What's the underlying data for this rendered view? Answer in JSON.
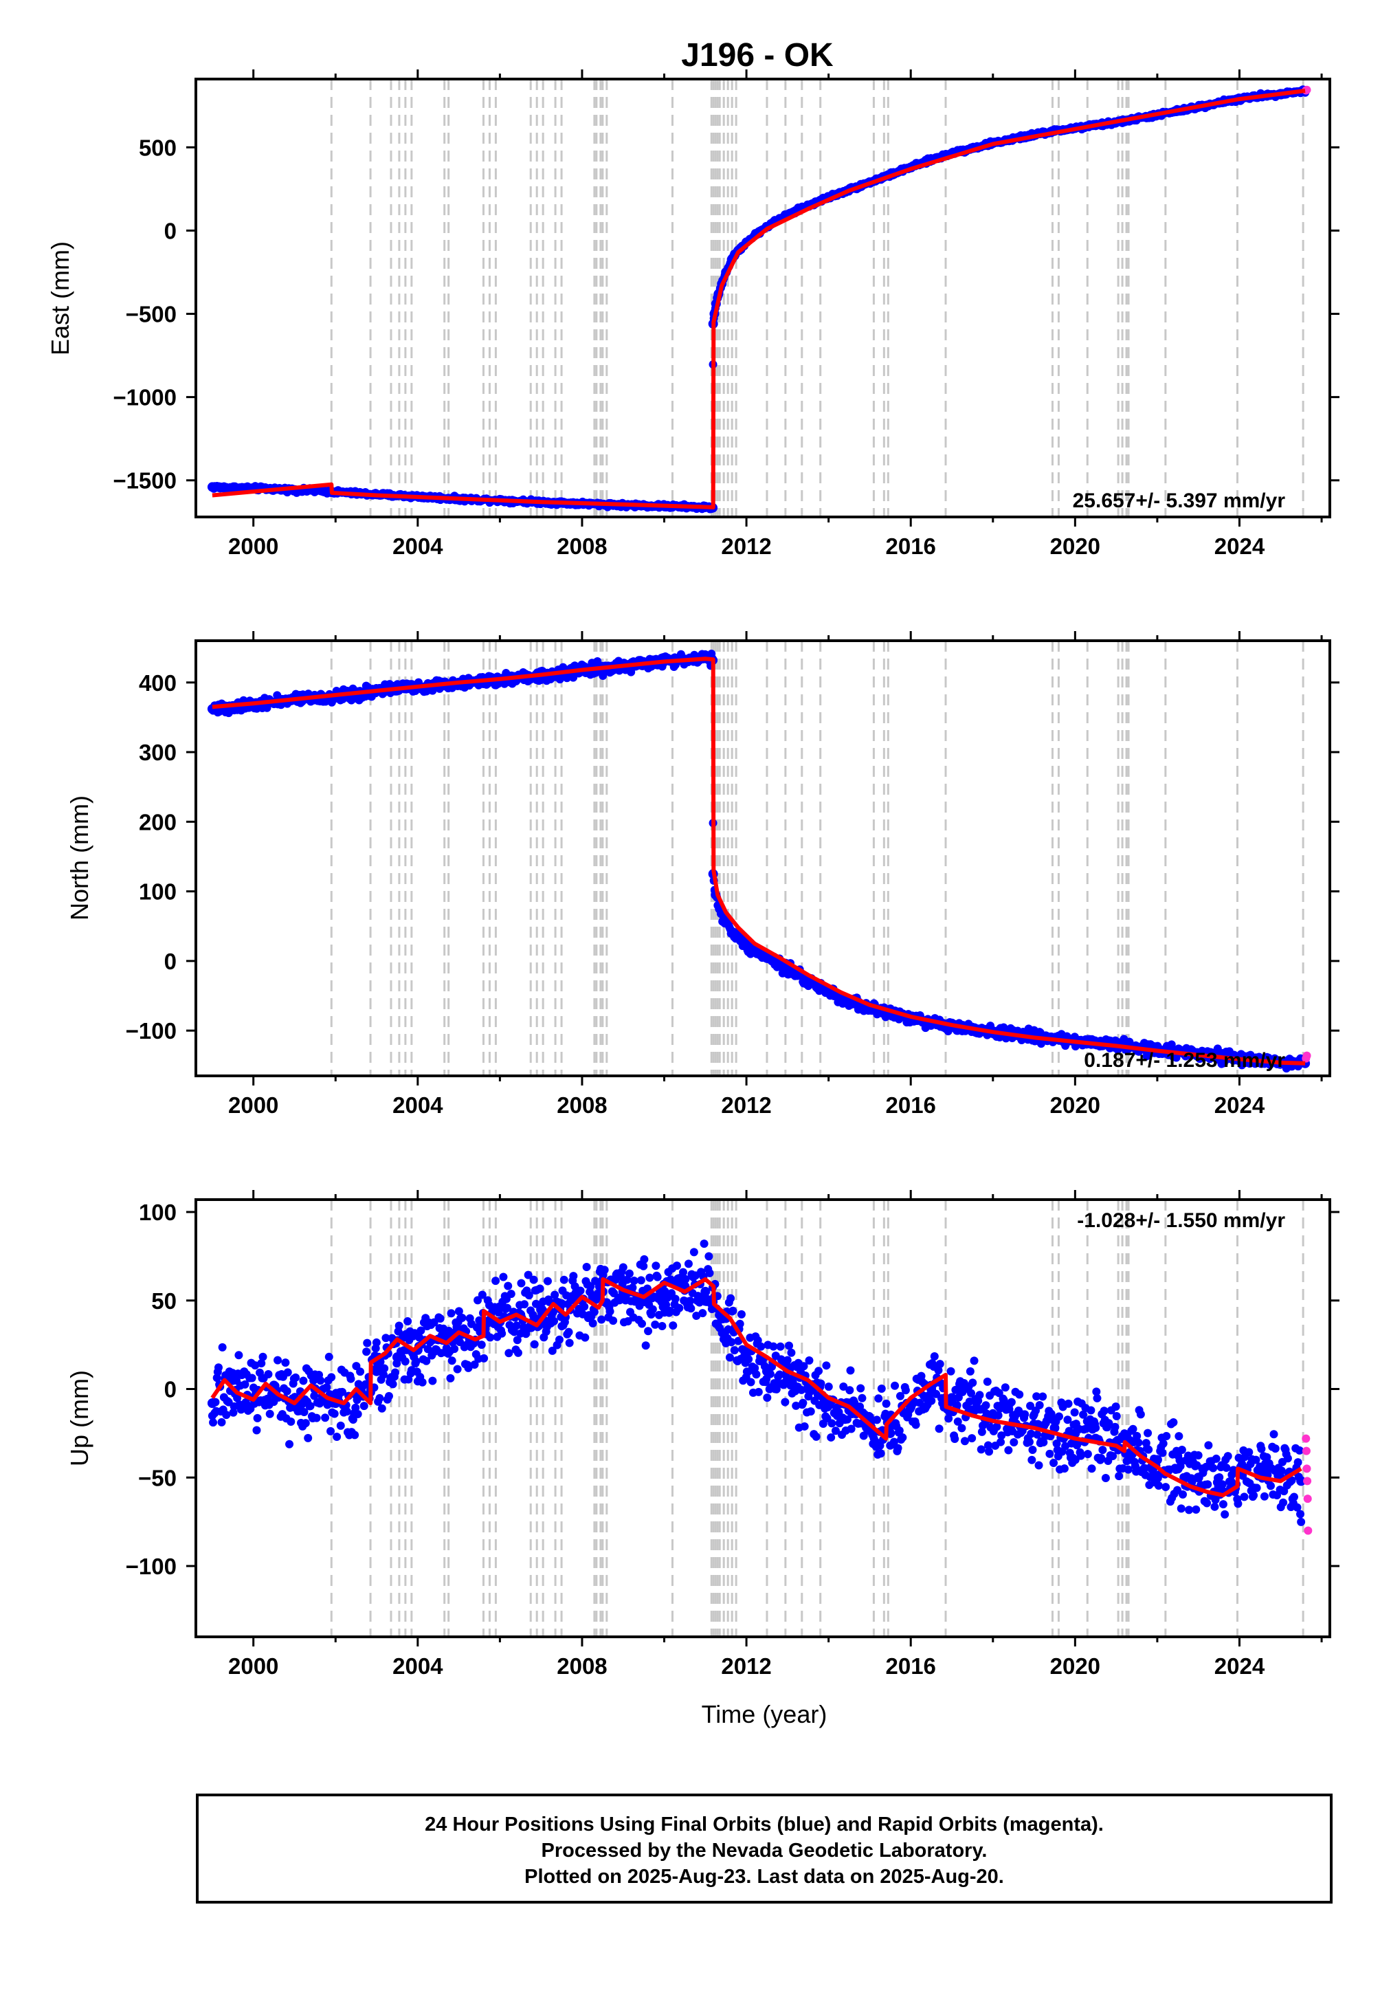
{
  "chart_data": {
    "type": "scatter",
    "title": "J196 - OK",
    "xlabel": "Time (year)",
    "xlim": [
      1998.6,
      2026.2
    ],
    "xticks": [
      2000,
      2004,
      2008,
      2012,
      2016,
      2020,
      2024
    ],
    "step_epochs": [
      2001.9,
      2002.85,
      2003.35,
      2003.55,
      2003.7,
      2003.85,
      2004.65,
      2004.75,
      2005.6,
      2005.75,
      2005.9,
      2006.75,
      2006.9,
      2007.05,
      2007.35,
      2007.5,
      2008.3,
      2008.35,
      2008.45,
      2008.5,
      2008.6,
      2010.2,
      2011.15,
      2011.2,
      2011.25,
      2011.3,
      2011.35,
      2011.45,
      2011.55,
      2011.65,
      2011.75,
      2012.5,
      2012.95,
      2013.35,
      2013.8,
      2015.1,
      2015.35,
      2015.45,
      2016.85,
      2019.45,
      2019.6,
      2020.3,
      2021.05,
      2021.15,
      2021.25,
      2021.3,
      2022.2,
      2023.95,
      2025.55
    ],
    "panels": [
      {
        "name": "east",
        "ylabel": "East (mm)",
        "ylim": [
          -1720,
          910
        ],
        "yticks": [
          500,
          0,
          -500,
          -1000,
          -1500
        ],
        "ytick_labels": [
          "500",
          "0",
          "−500",
          "−1000",
          "−1500"
        ],
        "rate_text": "25.657+/- 5.397 mm/yr",
        "final_orbits": {
          "x": [
            1999.0,
            1999.5,
            2000.0,
            2000.5,
            2001.0,
            2001.5,
            2001.9,
            2002.5,
            2003.0,
            2004.0,
            2005.0,
            2006.0,
            2007.0,
            2008.0,
            2009.0,
            2010.0,
            2011.0,
            2011.18,
            2011.19,
            2011.22,
            2011.26,
            2011.32,
            2011.4,
            2011.5,
            2011.65,
            2011.8,
            2012.0,
            2012.3,
            2012.6,
            2013.0,
            2013.5,
            2014.0,
            2014.5,
            2015.0,
            2015.5,
            2016.0,
            2016.5,
            2017.0,
            2017.5,
            2018.0,
            2018.5,
            2019.0,
            2019.5,
            2020.0,
            2020.5,
            2021.0,
            2021.5,
            2022.0,
            2022.5,
            2023.0,
            2023.5,
            2024.0,
            2024.5,
            2025.0,
            2025.5,
            2025.6
          ],
          "y": [
            -1540,
            -1545,
            -1548,
            -1552,
            -1558,
            -1563,
            -1568,
            -1578,
            -1585,
            -1597,
            -1612,
            -1620,
            -1630,
            -1640,
            -1648,
            -1655,
            -1662,
            -1665,
            -560,
            -500,
            -440,
            -380,
            -320,
            -250,
            -170,
            -120,
            -70,
            -10,
            40,
            95,
            150,
            200,
            245,
            290,
            335,
            380,
            425,
            465,
            495,
            525,
            550,
            575,
            598,
            615,
            632,
            650,
            672,
            695,
            718,
            742,
            770,
            790,
            808,
            822,
            835,
            840
          ],
          "color": "#0000FF"
        },
        "rapid_orbits": {
          "x": [
            2025.62,
            2025.64
          ],
          "y": [
            842,
            845
          ],
          "color": "#FF33CC"
        },
        "model": {
          "x": [
            1999.0,
            2001.9,
            2001.91,
            2003.0,
            2005.0,
            2007.0,
            2009.0,
            2011.0,
            2011.19,
            2011.2,
            2011.4,
            2011.8,
            2012.5,
            2013.5,
            2014.5,
            2016.0,
            2018.0,
            2020.0,
            2022.0,
            2024.0,
            2025.6
          ],
          "y": [
            -1590,
            -1525,
            -1575,
            -1590,
            -1610,
            -1630,
            -1645,
            -1660,
            -1662,
            -550,
            -330,
            -130,
            10,
            130,
            240,
            370,
            520,
            610,
            700,
            790,
            840
          ],
          "color": "#FF0000"
        }
      },
      {
        "name": "north",
        "ylabel": "North (mm)",
        "ylim": [
          -165,
          460
        ],
        "yticks": [
          400,
          300,
          200,
          100,
          0,
          -100
        ],
        "ytick_labels": [
          "400",
          "300",
          "200",
          "100",
          "0",
          "−100"
        ],
        "rate_text": "0.187+/- 1.253 mm/yr",
        "final_orbits": {
          "x": [
            1999.0,
            1999.5,
            2000.0,
            2001.0,
            2002.0,
            2003.0,
            2004.0,
            2005.0,
            2006.0,
            2007.0,
            2008.0,
            2009.0,
            2010.0,
            2011.0,
            2011.18,
            2011.19,
            2011.25,
            2011.35,
            2011.5,
            2011.7,
            2012.0,
            2012.5,
            2013.0,
            2013.5,
            2014.0,
            2014.5,
            2015.0,
            2015.5,
            2016.0,
            2016.5,
            2017.0,
            2018.0,
            2019.0,
            2020.0,
            2021.0,
            2022.0,
            2023.0,
            2024.0,
            2025.0,
            2025.6
          ],
          "y": [
            362,
            366,
            369,
            375,
            380,
            388,
            394,
            400,
            404,
            410,
            418,
            424,
            430,
            436,
            432,
            125,
            95,
            75,
            55,
            40,
            22,
            4,
            -12,
            -28,
            -45,
            -58,
            -68,
            -75,
            -82,
            -88,
            -94,
            -102,
            -108,
            -115,
            -120,
            -128,
            -134,
            -140,
            -145,
            -147
          ],
          "color": "#0000FF"
        },
        "rapid_orbits": {
          "x": [
            2025.62,
            2025.64
          ],
          "y": [
            -140,
            -136
          ],
          "color": "#FF33CC"
        },
        "model": {
          "x": [
            1999.0,
            2000.0,
            2001.0,
            2002.0,
            2003.0,
            2004.0,
            2005.0,
            2006.0,
            2007.0,
            2008.0,
            2009.0,
            2010.0,
            2011.0,
            2011.19,
            2011.2,
            2011.3,
            2011.5,
            2011.8,
            2012.2,
            2012.8,
            2013.5,
            2014.3,
            2015.0,
            2016.0,
            2017.0,
            2018.0,
            2019.0,
            2020.0,
            2021.0,
            2022.0,
            2023.0,
            2024.0,
            2025.0,
            2025.6
          ],
          "y": [
            365,
            370,
            376,
            382,
            388,
            394,
            400,
            405,
            411,
            418,
            424,
            430,
            434,
            433,
            130,
            95,
            70,
            48,
            25,
            5,
            -20,
            -45,
            -63,
            -80,
            -92,
            -102,
            -110,
            -116,
            -122,
            -129,
            -135,
            -141,
            -146,
            -147
          ],
          "color": "#FF0000"
        }
      },
      {
        "name": "up",
        "ylabel": "Up (mm)",
        "ylim": [
          -140,
          107
        ],
        "yticks": [
          100,
          50,
          0,
          -50,
          -100
        ],
        "ytick_labels": [
          "100",
          "50",
          "0",
          "−50",
          "−100"
        ],
        "rate_text": "-1.028+/- 1.550 mm/yr",
        "final_orbits": {
          "x": [
            1999.0,
            1999.5,
            2000.0,
            2000.5,
            2001.0,
            2001.5,
            2002.0,
            2002.5,
            2003.0,
            2003.5,
            2004.0,
            2004.5,
            2005.0,
            2005.5,
            2006.0,
            2006.5,
            2007.0,
            2007.5,
            2008.0,
            2008.5,
            2009.0,
            2009.5,
            2010.0,
            2010.5,
            2011.0,
            2011.5,
            2012.0,
            2012.5,
            2013.0,
            2013.5,
            2014.0,
            2014.5,
            2015.0,
            2015.5,
            2016.0,
            2016.5,
            2017.0,
            2017.5,
            2018.0,
            2018.5,
            2019.0,
            2019.5,
            2020.0,
            2020.5,
            2021.0,
            2021.5,
            2022.0,
            2022.5,
            2023.0,
            2023.5,
            2024.0,
            2024.5,
            2025.0,
            2025.5
          ],
          "y": [
            -8,
            5,
            -5,
            2,
            -10,
            0,
            -8,
            -3,
            10,
            18,
            22,
            28,
            30,
            35,
            38,
            42,
            45,
            48,
            50,
            55,
            55,
            52,
            55,
            58,
            55,
            40,
            20,
            10,
            5,
            0,
            -8,
            -12,
            -20,
            -25,
            -10,
            0,
            -5,
            -12,
            -15,
            -18,
            -20,
            -22,
            -25,
            -28,
            -30,
            -35,
            -40,
            -45,
            -50,
            -55,
            -48,
            -45,
            -50,
            -52
          ],
          "color": "#0000FF"
        },
        "rapid_orbits": {
          "x": [
            2025.62,
            2025.63,
            2025.64,
            2025.65,
            2025.66,
            2025.67
          ],
          "y": [
            -28,
            -35,
            -45,
            -52,
            -62,
            -80
          ],
          "color": "#FF33CC"
        },
        "model": {
          "x": [
            1999.0,
            1999.3,
            1999.6,
            2000.0,
            2000.3,
            2000.6,
            2001.0,
            2001.4,
            2001.8,
            2002.2,
            2002.5,
            2002.85,
            2002.86,
            2003.2,
            2003.5,
            2003.9,
            2004.3,
            2004.7,
            2005.0,
            2005.4,
            2005.6,
            2005.61,
            2006.0,
            2006.4,
            2006.9,
            2007.3,
            2007.6,
            2008.0,
            2008.4,
            2008.5,
            2008.51,
            2009.0,
            2009.5,
            2010.0,
            2010.5,
            2011.0,
            2011.2,
            2011.21,
            2011.6,
            2012.0,
            2012.5,
            2013.0,
            2013.5,
            2014.0,
            2014.5,
            2015.0,
            2015.4,
            2015.41,
            2016.0,
            2016.5,
            2016.85,
            2016.86,
            2017.5,
            2018.0,
            2018.5,
            2019.0,
            2019.5,
            2020.0,
            2020.5,
            2021.0,
            2021.2,
            2021.21,
            2021.6,
            2022.0,
            2022.2,
            2022.21,
            2022.8,
            2023.2,
            2023.6,
            2023.95,
            2023.96,
            2024.5,
            2025.0,
            2025.5
          ],
          "y": [
            -5,
            5,
            -2,
            -6,
            3,
            -3,
            -8,
            2,
            -5,
            -8,
            0,
            -8,
            15,
            20,
            28,
            22,
            30,
            26,
            32,
            28,
            30,
            44,
            38,
            42,
            36,
            48,
            42,
            52,
            46,
            50,
            62,
            56,
            52,
            60,
            55,
            62,
            58,
            48,
            40,
            25,
            18,
            10,
            5,
            -5,
            -10,
            -20,
            -28,
            -20,
            -5,
            3,
            8,
            -10,
            -15,
            -18,
            -20,
            -22,
            -25,
            -28,
            -30,
            -32,
            -35,
            -30,
            -38,
            -44,
            -48,
            -48,
            -55,
            -58,
            -60,
            -55,
            -45,
            -50,
            -52,
            -45
          ],
          "color": "#FF0000"
        }
      }
    ]
  },
  "caption": {
    "line1": "24 Hour Positions Using Final Orbits (blue) and Rapid Orbits (magenta).",
    "line2": "Processed by the Nevada Geodetic Laboratory.",
    "line3": "Plotted on 2025-Aug-23. Last data on 2025-Aug-20."
  }
}
